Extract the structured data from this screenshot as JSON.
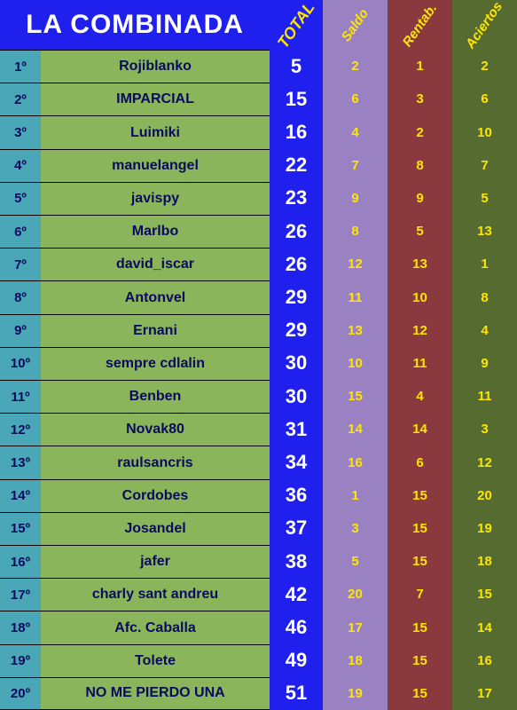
{
  "title": "LA COMBINADA",
  "headers": {
    "total": "TOTAL",
    "saldo": "Saldo",
    "rentab": "Rentab.",
    "aciertos": "Aciertos"
  },
  "colors": {
    "rank_bg": "#4aa7b8",
    "name_bg": "#8ab55a",
    "total_bg": "#2020ee",
    "saldo_bg": "#9a82c2",
    "rentab_bg": "#8a3a3f",
    "aciertos_bg": "#556b2f",
    "title_text": "#ffffff",
    "header_text": "#ffe600",
    "value_text": "#ffe600",
    "total_text": "#ffffff",
    "cell_text": "#0a0a60"
  },
  "rows": [
    {
      "rank": "1º",
      "name": "Rojiblanko",
      "total": "5",
      "saldo": "2",
      "rentab": "1",
      "aciertos": "2"
    },
    {
      "rank": "2º",
      "name": "IMPARCIAL",
      "total": "15",
      "saldo": "6",
      "rentab": "3",
      "aciertos": "6"
    },
    {
      "rank": "3º",
      "name": "Luimiki",
      "total": "16",
      "saldo": "4",
      "rentab": "2",
      "aciertos": "10"
    },
    {
      "rank": "4º",
      "name": "manuelangel",
      "total": "22",
      "saldo": "7",
      "rentab": "8",
      "aciertos": "7"
    },
    {
      "rank": "5º",
      "name": "javispy",
      "total": "23",
      "saldo": "9",
      "rentab": "9",
      "aciertos": "5"
    },
    {
      "rank": "6º",
      "name": "Marlbo",
      "total": "26",
      "saldo": "8",
      "rentab": "5",
      "aciertos": "13"
    },
    {
      "rank": "7º",
      "name": "david_iscar",
      "total": "26",
      "saldo": "12",
      "rentab": "13",
      "aciertos": "1"
    },
    {
      "rank": "8º",
      "name": "Antonvel",
      "total": "29",
      "saldo": "11",
      "rentab": "10",
      "aciertos": "8"
    },
    {
      "rank": "9º",
      "name": "Ernani",
      "total": "29",
      "saldo": "13",
      "rentab": "12",
      "aciertos": "4"
    },
    {
      "rank": "10º",
      "name": "sempre cdlalin",
      "total": "30",
      "saldo": "10",
      "rentab": "11",
      "aciertos": "9"
    },
    {
      "rank": "11º",
      "name": "Benben",
      "total": "30",
      "saldo": "15",
      "rentab": "4",
      "aciertos": "11"
    },
    {
      "rank": "12º",
      "name": "Novak80",
      "total": "31",
      "saldo": "14",
      "rentab": "14",
      "aciertos": "3"
    },
    {
      "rank": "13º",
      "name": "raulsancris",
      "total": "34",
      "saldo": "16",
      "rentab": "6",
      "aciertos": "12"
    },
    {
      "rank": "14º",
      "name": "Cordobes",
      "total": "36",
      "saldo": "1",
      "rentab": "15",
      "aciertos": "20"
    },
    {
      "rank": "15º",
      "name": "Josandel",
      "total": "37",
      "saldo": "3",
      "rentab": "15",
      "aciertos": "19"
    },
    {
      "rank": "16º",
      "name": "jafer",
      "total": "38",
      "saldo": "5",
      "rentab": "15",
      "aciertos": "18"
    },
    {
      "rank": "17º",
      "name": "charly sant andreu",
      "total": "42",
      "saldo": "20",
      "rentab": "7",
      "aciertos": "15"
    },
    {
      "rank": "18º",
      "name": "Afc. Caballa",
      "total": "46",
      "saldo": "17",
      "rentab": "15",
      "aciertos": "14"
    },
    {
      "rank": "19º",
      "name": "Tolete",
      "total": "49",
      "saldo": "18",
      "rentab": "15",
      "aciertos": "16"
    },
    {
      "rank": "20º",
      "name": "NO ME PIERDO UNA",
      "total": "51",
      "saldo": "19",
      "rentab": "15",
      "aciertos": "17"
    }
  ]
}
